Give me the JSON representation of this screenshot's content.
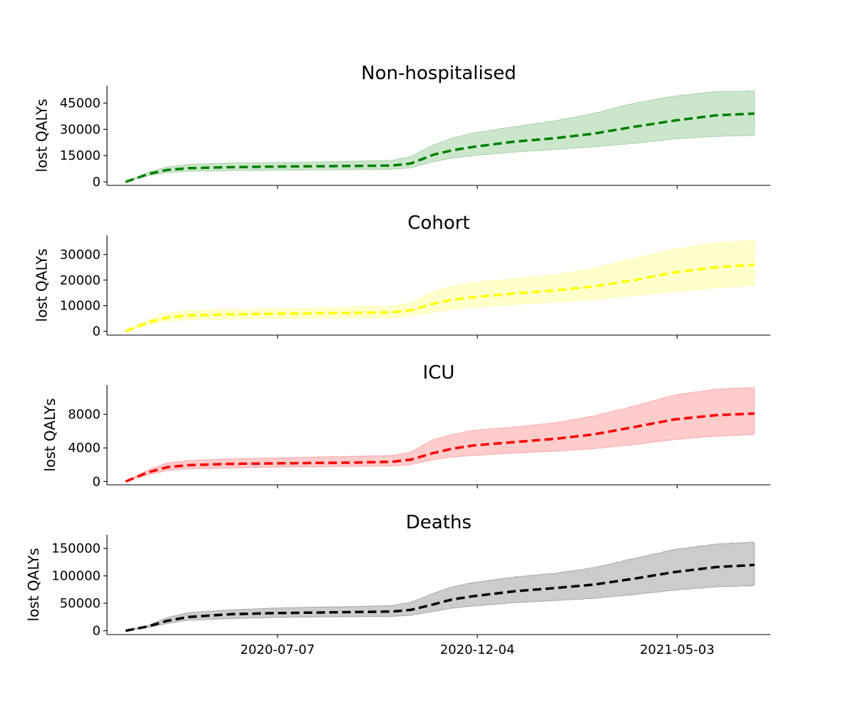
{
  "chart_data": [
    {
      "type": "line",
      "title": "Non-hospitalised",
      "ylabel": "lost QALYs",
      "xlabel": "",
      "color": "#008000",
      "fill_color": "#008000",
      "line_style": "dashed",
      "xlim": [
        "2020-03-01",
        "2021-07-12"
      ],
      "ylim": [
        -2000,
        55000
      ],
      "yticks": [
        0,
        15000,
        30000,
        45000
      ],
      "ytick_labels": [
        "0",
        "15000",
        "30000",
        "45000"
      ],
      "xticks": [
        "2020-07-07",
        "2020-12-04",
        "2021-05-03"
      ],
      "xtick_labels": [],
      "x": [
        "2020-03-15",
        "2020-04-01",
        "2020-04-15",
        "2020-05-01",
        "2020-06-01",
        "2020-07-01",
        "2020-08-01",
        "2020-09-01",
        "2020-10-01",
        "2020-10-15",
        "2020-11-01",
        "2020-11-15",
        "2020-12-01",
        "2021-01-01",
        "2021-02-01",
        "2021-03-01",
        "2021-04-01",
        "2021-05-01",
        "2021-06-01",
        "2021-06-30"
      ],
      "series": [
        {
          "values": [
            0,
            4500,
            6800,
            7800,
            8400,
            8700,
            8900,
            9100,
            9300,
            10500,
            15500,
            18000,
            20000,
            23000,
            25000,
            27500,
            31500,
            35000,
            38000,
            39000
          ]
        },
        {
          "values": [
            0,
            5500,
            8500,
            10000,
            10800,
            11000,
            11300,
            11800,
            12300,
            14500,
            21000,
            25000,
            28000,
            31500,
            35000,
            39000,
            45000,
            49000,
            51500,
            52000
          ]
        },
        {
          "values": [
            0,
            3500,
            5200,
            6000,
            6400,
            6600,
            6800,
            7000,
            7200,
            8000,
            11500,
            13500,
            15000,
            17000,
            18500,
            20000,
            22000,
            24500,
            26000,
            26500
          ]
        }
      ]
    },
    {
      "type": "line",
      "title": "Cohort",
      "ylabel": "lost QALYs",
      "xlabel": "",
      "color": "#ffff00",
      "fill_color": "#ffff00",
      "line_style": "dashed",
      "xlim": [
        "2020-03-01",
        "2021-07-12"
      ],
      "ylim": [
        -1500,
        37500
      ],
      "yticks": [
        0,
        10000,
        20000,
        30000
      ],
      "ytick_labels": [
        "0",
        "10000",
        "20000",
        "30000"
      ],
      "xticks": [
        "2020-07-07",
        "2020-12-04",
        "2021-05-03"
      ],
      "xtick_labels": [],
      "x": [
        "2020-03-15",
        "2020-04-01",
        "2020-04-15",
        "2020-05-01",
        "2020-06-01",
        "2020-07-01",
        "2020-08-01",
        "2020-09-01",
        "2020-10-01",
        "2020-10-15",
        "2020-11-01",
        "2020-11-15",
        "2020-12-01",
        "2021-01-01",
        "2021-02-01",
        "2021-03-01",
        "2021-04-01",
        "2021-05-01",
        "2021-06-01",
        "2021-06-30"
      ],
      "series": [
        {
          "values": [
            0,
            3500,
            5300,
            6200,
            6600,
            6800,
            7000,
            7200,
            7400,
            8200,
            10800,
            12300,
            13300,
            14800,
            16000,
            17500,
            20000,
            23000,
            25000,
            26000
          ]
        },
        {
          "values": [
            0,
            4500,
            7000,
            8000,
            8500,
            8700,
            9000,
            9400,
            9800,
            11000,
            15500,
            17500,
            19000,
            20500,
            22000,
            24500,
            28500,
            32000,
            34500,
            35500
          ]
        },
        {
          "values": [
            0,
            2500,
            4000,
            4500,
            4800,
            5000,
            5100,
            5200,
            5400,
            6000,
            7500,
            8500,
            9500,
            10500,
            11500,
            12500,
            14000,
            15500,
            17000,
            18000
          ]
        }
      ]
    },
    {
      "type": "line",
      "title": "ICU",
      "ylabel": "lost QALYs",
      "xlabel": "",
      "color": "#ff0000",
      "fill_color": "#ff0000",
      "line_style": "dashed",
      "xlim": [
        "2020-03-01",
        "2021-07-12"
      ],
      "ylim": [
        -400,
        11500
      ],
      "yticks": [
        0,
        4000,
        8000
      ],
      "ytick_labels": [
        "0",
        "4000",
        "8000"
      ],
      "xticks": [
        "2020-07-07",
        "2020-12-04",
        "2021-05-03"
      ],
      "xtick_labels": [],
      "x": [
        "2020-03-15",
        "2020-04-01",
        "2020-04-15",
        "2020-05-01",
        "2020-06-01",
        "2020-07-01",
        "2020-08-01",
        "2020-09-01",
        "2020-10-01",
        "2020-10-15",
        "2020-11-01",
        "2020-11-15",
        "2020-12-01",
        "2021-01-01",
        "2021-02-01",
        "2021-03-01",
        "2021-04-01",
        "2021-05-01",
        "2021-06-01",
        "2021-06-30"
      ],
      "series": [
        {
          "values": [
            0,
            1100,
            1700,
            1950,
            2100,
            2150,
            2200,
            2250,
            2350,
            2600,
            3400,
            3900,
            4300,
            4700,
            5100,
            5600,
            6500,
            7400,
            7900,
            8100
          ]
        },
        {
          "values": [
            0,
            1400,
            2200,
            2500,
            2700,
            2800,
            2900,
            3000,
            3100,
            3500,
            5000,
            5600,
            6100,
            6500,
            7000,
            7800,
            9000,
            10300,
            11000,
            11200
          ]
        },
        {
          "values": [
            0,
            800,
            1300,
            1500,
            1600,
            1700,
            1750,
            1800,
            1850,
            2000,
            2600,
            2900,
            3100,
            3400,
            3600,
            3900,
            4400,
            5000,
            5400,
            5600
          ]
        }
      ]
    },
    {
      "type": "line",
      "title": "Deaths",
      "ylabel": "lost QALYs",
      "xlabel": "",
      "color": "#000000",
      "fill_color": "#000000",
      "line_style": "dashed",
      "xlim": [
        "2020-03-01",
        "2021-07-12"
      ],
      "ylim": [
        -7000,
        175000
      ],
      "yticks": [
        0,
        50000,
        100000,
        150000
      ],
      "ytick_labels": [
        "0",
        "50000",
        "100000",
        "150000"
      ],
      "xticks": [
        "2020-07-07",
        "2020-12-04",
        "2021-05-03"
      ],
      "xtick_labels": [
        "2020-07-07",
        "2020-12-04",
        "2021-05-03"
      ],
      "x": [
        "2020-03-15",
        "2020-04-01",
        "2020-04-15",
        "2020-05-01",
        "2020-06-01",
        "2020-07-01",
        "2020-08-01",
        "2020-09-01",
        "2020-10-01",
        "2020-10-15",
        "2020-11-01",
        "2020-11-15",
        "2020-12-01",
        "2021-01-01",
        "2021-02-01",
        "2021-03-01",
        "2021-04-01",
        "2021-05-01",
        "2021-06-01",
        "2021-06-30"
      ],
      "series": [
        {
          "values": [
            0,
            8000,
            18000,
            25000,
            30000,
            32000,
            33000,
            34000,
            35000,
            38000,
            48000,
            57000,
            63000,
            72000,
            78000,
            84000,
            95000,
            107000,
            116000,
            120000
          ]
        },
        {
          "values": [
            0,
            10000,
            24000,
            33000,
            38000,
            41000,
            43000,
            44000,
            46000,
            52000,
            68000,
            80000,
            88000,
            98000,
            105000,
            115000,
            132000,
            148000,
            158000,
            162000
          ]
        },
        {
          "values": [
            0,
            6000,
            13000,
            19000,
            22000,
            24000,
            25000,
            25500,
            26000,
            28000,
            35000,
            41000,
            45000,
            51000,
            55000,
            59000,
            66000,
            74000,
            80000,
            82000
          ]
        }
      ]
    }
  ]
}
